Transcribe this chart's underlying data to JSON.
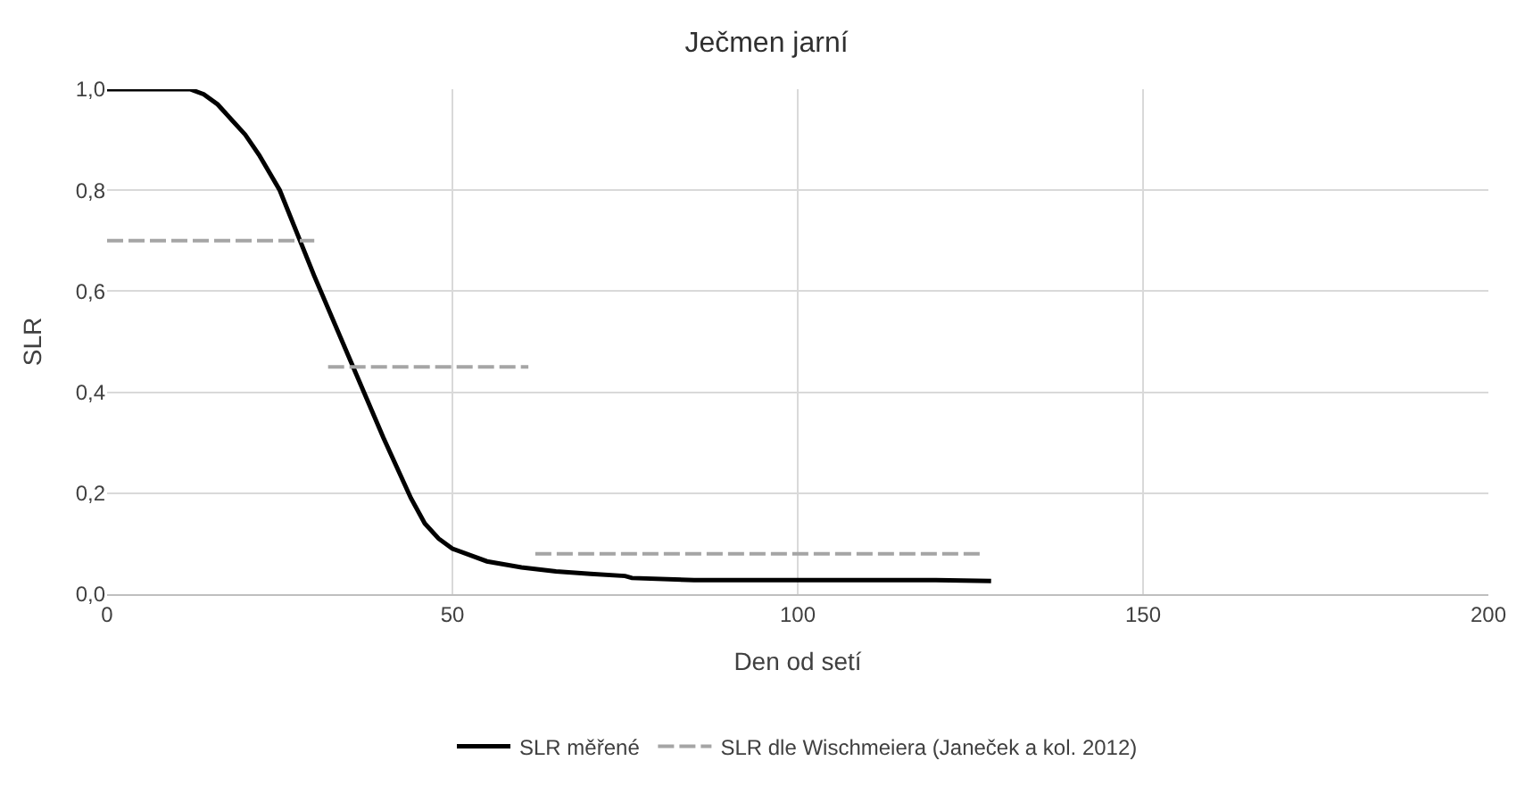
{
  "chart_data": {
    "type": "line",
    "title": "Ječmen jarní",
    "xlabel": "Den od setí",
    "ylabel": "SLR",
    "xlim": [
      0,
      200
    ],
    "xticks": [
      0,
      50,
      100,
      150,
      200
    ],
    "ylim": [
      0,
      1
    ],
    "yticks": [
      {
        "value": 0,
        "label": "0,0"
      },
      {
        "value": 0.2,
        "label": "0,2"
      },
      {
        "value": 0.4,
        "label": "0,4"
      },
      {
        "value": 0.6,
        "label": "0,6"
      },
      {
        "value": 0.8,
        "label": "0,8"
      },
      {
        "value": 1,
        "label": "1,0"
      }
    ],
    "grid": true,
    "legend": "bottom",
    "marker": "none",
    "series": [
      {
        "name": "SLR měřené",
        "color": "#000000",
        "line_style": "solid",
        "x": [
          0,
          12,
          14,
          16,
          18,
          20,
          22,
          25,
          30,
          35,
          40,
          44,
          46,
          48,
          50,
          55,
          60,
          65,
          70,
          75,
          76,
          85,
          100,
          120,
          128
        ],
        "values": [
          1,
          1,
          0.99,
          0.97,
          0.94,
          0.91,
          0.87,
          0.8,
          0.63,
          0.47,
          0.31,
          0.19,
          0.14,
          0.11,
          0.09,
          0.065,
          0.053,
          0.045,
          0.04,
          0.036,
          0.032,
          0.028,
          0.028,
          0.028,
          0.026
        ]
      },
      {
        "name": "SLR dle Wischmeiera (Janeček a kol. 2012)",
        "color": "#a5a5a5",
        "line_style": "dashed",
        "x": [
          0,
          30,
          31,
          32,
          61,
          61.5,
          62,
          127
        ],
        "values": [
          0.7,
          0.7,
          null,
          0.45,
          0.45,
          null,
          0.08,
          0.08
        ]
      }
    ]
  }
}
